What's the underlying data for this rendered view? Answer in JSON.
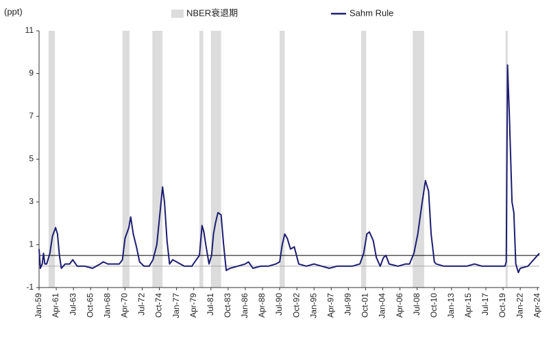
{
  "chart_data": {
    "type": "line",
    "y_unit_label": "(ppt)",
    "recession_label": "NBER衰退期",
    "recession_color": "#dcdcdc",
    "recessions": [
      [
        "1960-04",
        "1961-02"
      ],
      [
        "1969-12",
        "1970-11"
      ],
      [
        "1973-11",
        "1975-03"
      ],
      [
        "1980-01",
        "1980-07"
      ],
      [
        "1981-07",
        "1982-11"
      ],
      [
        "1990-07",
        "1991-03"
      ],
      [
        "2001-03",
        "2001-11"
      ],
      [
        "2007-12",
        "2009-06"
      ],
      [
        "2020-02",
        "2020-04"
      ]
    ],
    "hlines": [
      {
        "value": 0.5,
        "color": "#000000"
      },
      {
        "value": 0,
        "color": "#aaaaaa"
      }
    ],
    "x": [
      "1959-01",
      "1959-03",
      "1959-06",
      "1959-08",
      "1959-10",
      "1960-01",
      "1960-06",
      "1960-10",
      "1961-03",
      "1961-06",
      "1961-09",
      "1961-12",
      "1962-06",
      "1963-01",
      "1963-06",
      "1964-01",
      "1965-01",
      "1966-01",
      "1967-01",
      "1967-06",
      "1968-01",
      "1969-01",
      "1969-07",
      "1969-12",
      "1970-04",
      "1970-10",
      "1971-01",
      "1971-05",
      "1971-10",
      "1972-03",
      "1972-10",
      "1973-06",
      "1973-12",
      "1974-06",
      "1974-12",
      "1975-03",
      "1975-06",
      "1975-10",
      "1976-02",
      "1976-07",
      "1977-01",
      "1978-01",
      "1979-01",
      "1979-08",
      "1980-01",
      "1980-05",
      "1980-08",
      "1980-11",
      "1981-04",
      "1981-08",
      "1981-11",
      "1982-02",
      "1982-06",
      "1982-11",
      "1983-03",
      "1983-07",
      "1984-01",
      "1985-01",
      "1986-01",
      "1986-06",
      "1987-01",
      "1988-01",
      "1989-01",
      "1990-01",
      "1990-07",
      "1990-11",
      "1991-03",
      "1991-07",
      "1991-12",
      "1992-06",
      "1993-01",
      "1994-01",
      "1995-01",
      "1996-01",
      "1997-01",
      "1998-01",
      "1999-01",
      "2000-01",
      "2001-01",
      "2001-07",
      "2001-12",
      "2002-04",
      "2002-10",
      "2003-03",
      "2003-09",
      "2004-02",
      "2004-06",
      "2004-11",
      "2006-01",
      "2007-01",
      "2007-07",
      "2008-02",
      "2008-08",
      "2009-03",
      "2009-08",
      "2010-01",
      "2010-05",
      "2010-10",
      "2011-01",
      "2012-01",
      "2013-01",
      "2014-01",
      "2015-01",
      "2016-01",
      "2017-01",
      "2018-01",
      "2019-01",
      "2020-01",
      "2020-03",
      "2020-05",
      "2020-08",
      "2020-12",
      "2021-03",
      "2021-06",
      "2021-10",
      "2022-01",
      "2023-01",
      "2023-07",
      "2024-01",
      "2024-07"
    ],
    "series": [
      {
        "name": "Sahm Rule",
        "color": "#1c1c72",
        "values": [
          0.8,
          -0.1,
          0.1,
          0.6,
          0.1,
          0.1,
          0.6,
          1.4,
          1.8,
          1.5,
          0.5,
          -0.1,
          0.1,
          0.1,
          0.3,
          0,
          0,
          -0.1,
          0.1,
          0.2,
          0.1,
          0.1,
          0.1,
          0.3,
          1.3,
          1.8,
          2.3,
          1.5,
          0.9,
          0.2,
          0,
          0,
          0.3,
          1.0,
          2.8,
          3.7,
          3.0,
          1.2,
          0.1,
          0.3,
          0.2,
          0,
          0,
          0.3,
          0.5,
          1.9,
          1.6,
          1.0,
          0.1,
          0.5,
          1.5,
          2.0,
          2.5,
          2.4,
          1.0,
          -0.2,
          -0.1,
          0,
          0.1,
          0.2,
          -0.1,
          0,
          0,
          0.1,
          0.2,
          1.0,
          1.5,
          1.3,
          0.8,
          0.9,
          0.1,
          0,
          0.1,
          0,
          -0.1,
          0,
          0,
          0,
          0.1,
          0.6,
          1.5,
          1.6,
          1.2,
          0.4,
          0,
          0.4,
          0.5,
          0.1,
          0,
          0.1,
          0.1,
          0.6,
          1.5,
          3.0,
          4.0,
          3.5,
          1.5,
          0.2,
          0.1,
          0,
          0,
          0,
          0,
          0.1,
          0,
          0,
          0,
          0,
          0.2,
          9.4,
          7.0,
          3.0,
          2.5,
          0.1,
          -0.3,
          -0.1,
          0,
          0.2,
          0.4,
          0.6
        ]
      }
    ],
    "xlim": [
      "1959-01",
      "2024-07"
    ],
    "xticks": [
      {
        "value": "1959-01",
        "label": "Jan-59"
      },
      {
        "value": "1961-04",
        "label": "Apr-61"
      },
      {
        "value": "1963-07",
        "label": "Jul-63"
      },
      {
        "value": "1965-10",
        "label": "Oct-65"
      },
      {
        "value": "1968-01",
        "label": "Jan-68"
      },
      {
        "value": "1970-04",
        "label": "Apr-70"
      },
      {
        "value": "1972-07",
        "label": "Jul-72"
      },
      {
        "value": "1974-10",
        "label": "Oct-74"
      },
      {
        "value": "1977-01",
        "label": "Jan-77"
      },
      {
        "value": "1979-04",
        "label": "Apr-79"
      },
      {
        "value": "1981-07",
        "label": "Jul-81"
      },
      {
        "value": "1983-10",
        "label": "Oct-83"
      },
      {
        "value": "1986-01",
        "label": "Jan-86"
      },
      {
        "value": "1988-04",
        "label": "Apr-88"
      },
      {
        "value": "1990-07",
        "label": "Jul-90"
      },
      {
        "value": "1992-10",
        "label": "Oct-92"
      },
      {
        "value": "1995-01",
        "label": "Jan-95"
      },
      {
        "value": "1997-04",
        "label": "Apr-97"
      },
      {
        "value": "1999-07",
        "label": "Jul-99"
      },
      {
        "value": "2001-10",
        "label": "Oct-01"
      },
      {
        "value": "2004-01",
        "label": "Jan-04"
      },
      {
        "value": "2006-04",
        "label": "Apr-06"
      },
      {
        "value": "2008-07",
        "label": "Jul-08"
      },
      {
        "value": "2010-10",
        "label": "Oct-10"
      },
      {
        "value": "2013-01",
        "label": "Jan-13"
      },
      {
        "value": "2015-04",
        "label": "Apr-15"
      },
      {
        "value": "2017-07",
        "label": "Jul-17"
      },
      {
        "value": "2019-10",
        "label": "Oct-19"
      },
      {
        "value": "2022-01",
        "label": "Jan-22"
      },
      {
        "value": "2024-04",
        "label": "Apr-24"
      }
    ],
    "ylim": [
      -1,
      11
    ],
    "yticks": [
      -1,
      1,
      3,
      5,
      7,
      9,
      11
    ]
  }
}
